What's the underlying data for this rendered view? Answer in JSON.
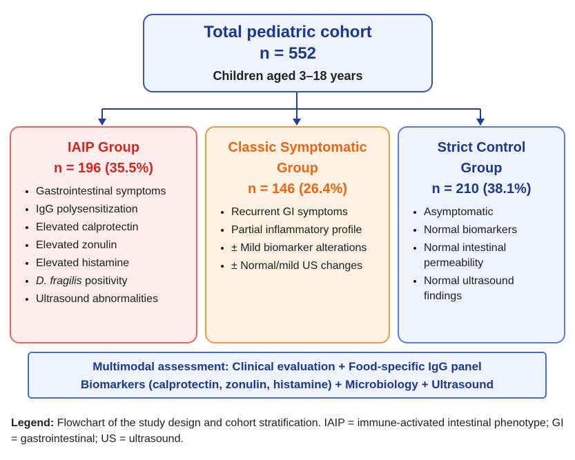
{
  "top": {
    "title": "Total pediatric cohort",
    "n": "n = 552",
    "subtitle": "Children aged 3–18 years"
  },
  "groups": [
    {
      "title": "IAIP Group",
      "n": "n = 196 (35.5%)",
      "color": "#d7261d",
      "items": [
        "Gastrointestinal symptoms",
        "IgG polysensitization",
        "Elevated calprotectin",
        "Elevated zonulin",
        "Elevated histamine",
        "D. fragilis positivity",
        "Ultrasound abnormalities"
      ],
      "italic_part": "D. fragilis",
      "italic_rest": " positivity"
    },
    {
      "title_line1": "Classic Symptomatic",
      "title_line2": "Group",
      "n": "n = 146 (26.4%)",
      "color": "#ee6612",
      "items": [
        "Recurrent GI symptoms",
        "Partial inflammatory profile",
        "± Mild biomarker alterations",
        "± Normal/mild US changes"
      ]
    },
    {
      "title_line1": "Strict Control",
      "title_line2": "Group",
      "n": "n = 210 (38.1%)",
      "color": "#1a3a8f",
      "items": [
        "Asymptomatic",
        "Normal biomarkers",
        "Normal intestinal permeability",
        "Normal ultrasound findings"
      ]
    }
  ],
  "multimodal": {
    "line1": "Multimodal assessment: Clinical evaluation + Food-specific IgG panel",
    "line2": "Biomarkers (calprotectin, zonulin, histamine) + Microbiology + Ultrasound"
  },
  "legend": {
    "label": "Legend:",
    "text": " Flowchart of the study design and cohort stratification. IAIP = immune-activated intestinal phenotype; GI = gastrointestinal; US = ultrasound."
  },
  "colors": {
    "connector": "#1f3f9a",
    "top_border": "#2f57b5"
  }
}
